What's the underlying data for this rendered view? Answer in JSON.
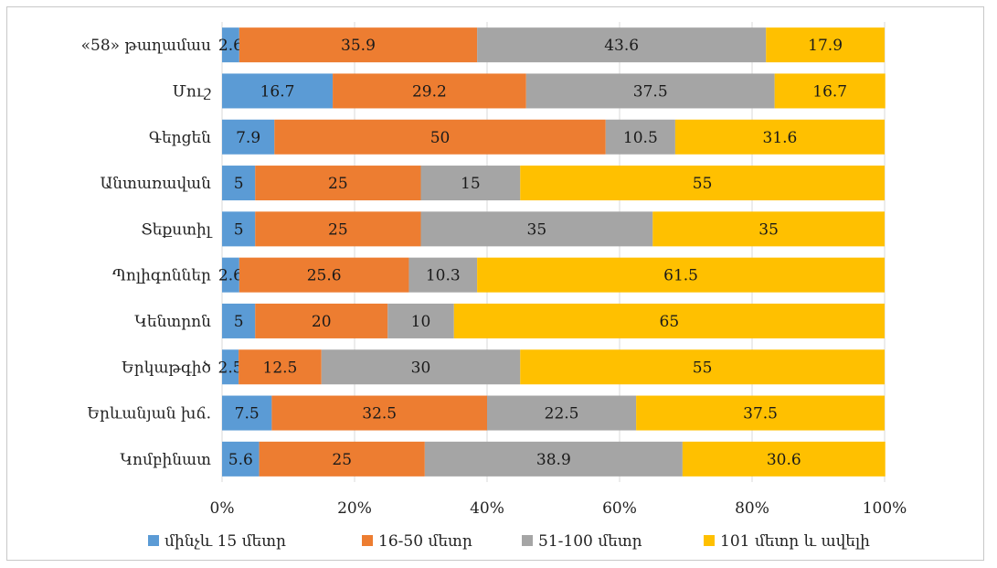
{
  "chart_data": {
    "type": "bar",
    "orientation": "horizontal",
    "stacked": "percent",
    "categories": [
      "«58» թաղամաս",
      "Մուշ",
      "Գերցեն",
      "Անտառավան",
      "Տեքստիլ",
      "Պոլիգոններ",
      "Կենտրոն",
      "Երկաթգիծ",
      "Երևանյան խճ.",
      "Կոմբինատ"
    ],
    "series": [
      {
        "name": "մինչև 15 մետր",
        "color": "#5b9bd5",
        "values": [
          2.6,
          16.7,
          7.9,
          5,
          5,
          2.6,
          5,
          2.5,
          7.5,
          5.6
        ]
      },
      {
        "name": "16-50 մետր",
        "color": "#ed7d31",
        "values": [
          35.9,
          29.2,
          50,
          25,
          25,
          25.6,
          20,
          12.5,
          32.5,
          25
        ]
      },
      {
        "name": "51-100 մետր",
        "color": "#a5a5a5",
        "values": [
          43.6,
          37.5,
          10.5,
          15,
          35,
          10.3,
          10,
          30,
          22.5,
          38.9
        ]
      },
      {
        "name": "101 մետր և ավելի",
        "color": "#ffc000",
        "values": [
          17.9,
          16.7,
          31.6,
          55,
          35,
          61.5,
          65,
          55,
          37.5,
          30.6
        ]
      }
    ],
    "x_ticks": [
      "0%",
      "20%",
      "40%",
      "60%",
      "80%",
      "100%"
    ],
    "xlim": [
      0,
      100
    ],
    "grid": true,
    "legend": "bottom"
  }
}
